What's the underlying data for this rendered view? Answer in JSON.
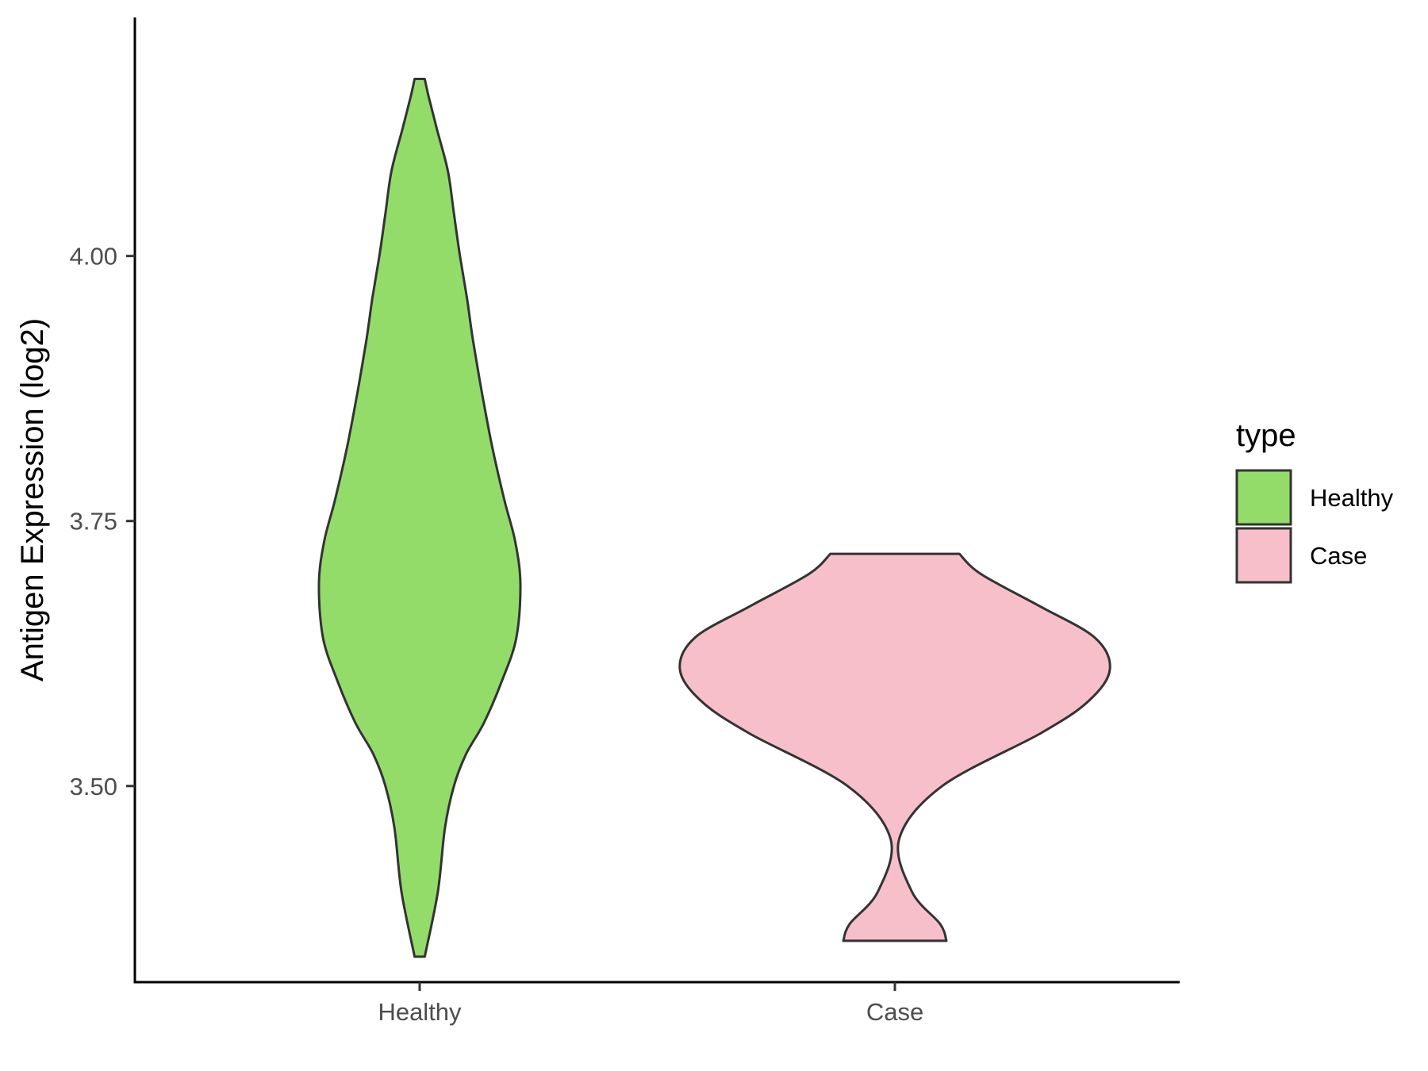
{
  "chart_data": {
    "type": "violin",
    "title": "",
    "xlabel": "",
    "ylabel": "Antigen Expression (log2)",
    "ylim": [
      3.315,
      4.225
    ],
    "yticks": [
      "3.50",
      "3.75",
      "4.00"
    ],
    "ytick_values": [
      3.5,
      3.75,
      4.0
    ],
    "categories": [
      "Healthy",
      "Case"
    ],
    "series": [
      {
        "name": "Healthy",
        "color": "#93DC6A",
        "min": 3.339,
        "max": 4.167,
        "profile": [
          [
            3.339,
            0.05
          ],
          [
            3.4,
            0.18
          ],
          [
            3.46,
            0.25
          ],
          [
            3.5,
            0.34
          ],
          [
            3.53,
            0.46
          ],
          [
            3.56,
            0.64
          ],
          [
            3.6,
            0.82
          ],
          [
            3.64,
            0.96
          ],
          [
            3.69,
            1.0
          ],
          [
            3.73,
            0.95
          ],
          [
            3.77,
            0.84
          ],
          [
            3.82,
            0.72
          ],
          [
            3.87,
            0.62
          ],
          [
            3.92,
            0.53
          ],
          [
            3.96,
            0.47
          ],
          [
            4.0,
            0.4
          ],
          [
            4.04,
            0.34
          ],
          [
            4.08,
            0.28
          ],
          [
            4.12,
            0.17
          ],
          [
            4.15,
            0.09
          ],
          [
            4.167,
            0.05
          ]
        ]
      },
      {
        "name": "Case",
        "color": "#F7BFCA",
        "min": 3.354,
        "max": 3.719,
        "profile": [
          [
            3.354,
            0.24
          ],
          [
            3.37,
            0.21
          ],
          [
            3.4,
            0.08
          ],
          [
            3.45,
            0.02
          ],
          [
            3.5,
            0.22
          ],
          [
            3.55,
            0.68
          ],
          [
            3.58,
            0.9
          ],
          [
            3.61,
            1.0
          ],
          [
            3.64,
            0.93
          ],
          [
            3.67,
            0.67
          ],
          [
            3.7,
            0.4
          ],
          [
            3.719,
            0.3
          ]
        ]
      }
    ],
    "legend": {
      "title": "type",
      "position": "right",
      "items": [
        {
          "label": "Healthy",
          "color": "#93DC6A"
        },
        {
          "label": "Case",
          "color": "#F7BFCA"
        }
      ]
    },
    "grid": false
  }
}
